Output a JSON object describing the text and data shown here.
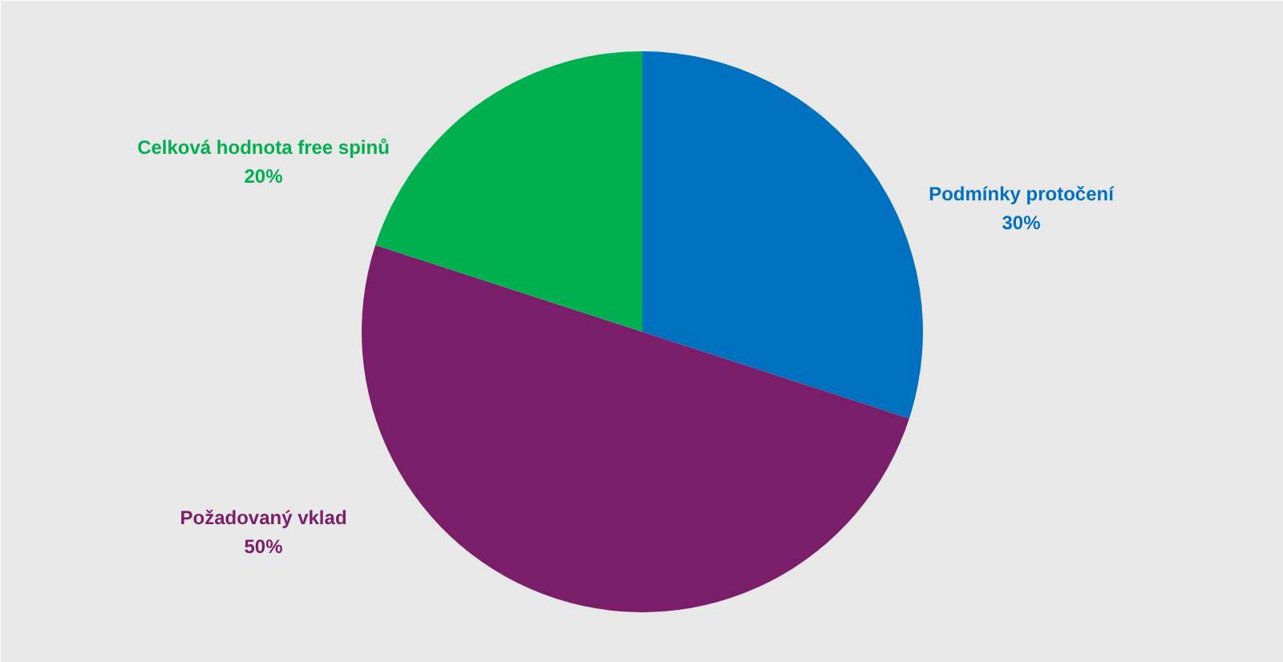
{
  "chart_data": {
    "type": "pie",
    "categories": [
      "Podmínky protočení",
      "Požadovaný vklad",
      "Celková hodnota free spinů"
    ],
    "values": [
      30,
      50,
      20
    ],
    "colors": [
      "#0070c0",
      "#7b1e6a",
      "#00b050"
    ],
    "value_labels": [
      "30%",
      "50%",
      "20%"
    ]
  }
}
